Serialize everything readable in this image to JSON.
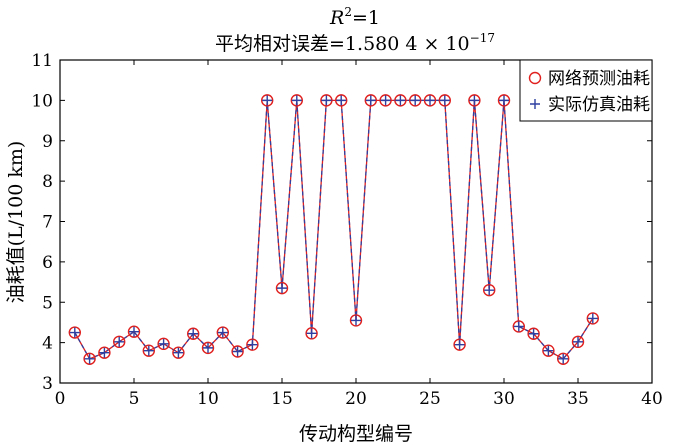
{
  "chart_data": {
    "type": "line",
    "title_line1": {
      "r": "R",
      "sup": "2",
      "rest": "=1"
    },
    "title_line2": {
      "main": "平均相对误差=1.580 4 × 10",
      "sup": "−17"
    },
    "xlabel": "传动构型编号",
    "ylabel": "油耗值(L/100 km)",
    "xlim": [
      0,
      40
    ],
    "ylim": [
      3,
      11
    ],
    "xticks": [
      0,
      5,
      10,
      15,
      20,
      25,
      30,
      35,
      40
    ],
    "yticks": [
      3,
      4,
      5,
      6,
      7,
      8,
      9,
      10,
      11
    ],
    "grid": false,
    "legend_position": "top-right",
    "x": [
      1,
      2,
      3,
      4,
      5,
      6,
      7,
      8,
      9,
      10,
      11,
      12,
      13,
      14,
      15,
      16,
      17,
      18,
      19,
      20,
      21,
      22,
      23,
      24,
      25,
      26,
      27,
      28,
      29,
      30,
      31,
      32,
      33,
      34,
      35,
      36
    ],
    "series": [
      {
        "name": "网络预测油耗",
        "color": "#e0201e",
        "marker": "circle",
        "line": "solid",
        "values": [
          4.25,
          3.6,
          3.75,
          4.02,
          4.27,
          3.8,
          3.97,
          3.75,
          4.22,
          3.87,
          4.25,
          3.78,
          3.95,
          10,
          5.35,
          10,
          4.23,
          10,
          10,
          4.55,
          10,
          10,
          10,
          10,
          10,
          10,
          3.95,
          10,
          5.3,
          10,
          4.4,
          4.22,
          3.8,
          3.6,
          4.02,
          4.6
        ]
      },
      {
        "name": "实际仿真油耗",
        "color": "#2e3fa0",
        "marker": "plus",
        "line": "dashed",
        "values": [
          4.25,
          3.6,
          3.75,
          4.02,
          4.27,
          3.8,
          3.97,
          3.75,
          4.22,
          3.87,
          4.25,
          3.78,
          3.95,
          10,
          5.35,
          10,
          4.23,
          10,
          10,
          4.55,
          10,
          10,
          10,
          10,
          10,
          10,
          3.95,
          10,
          5.3,
          10,
          4.4,
          4.22,
          3.8,
          3.6,
          4.02,
          4.6
        ]
      }
    ]
  }
}
